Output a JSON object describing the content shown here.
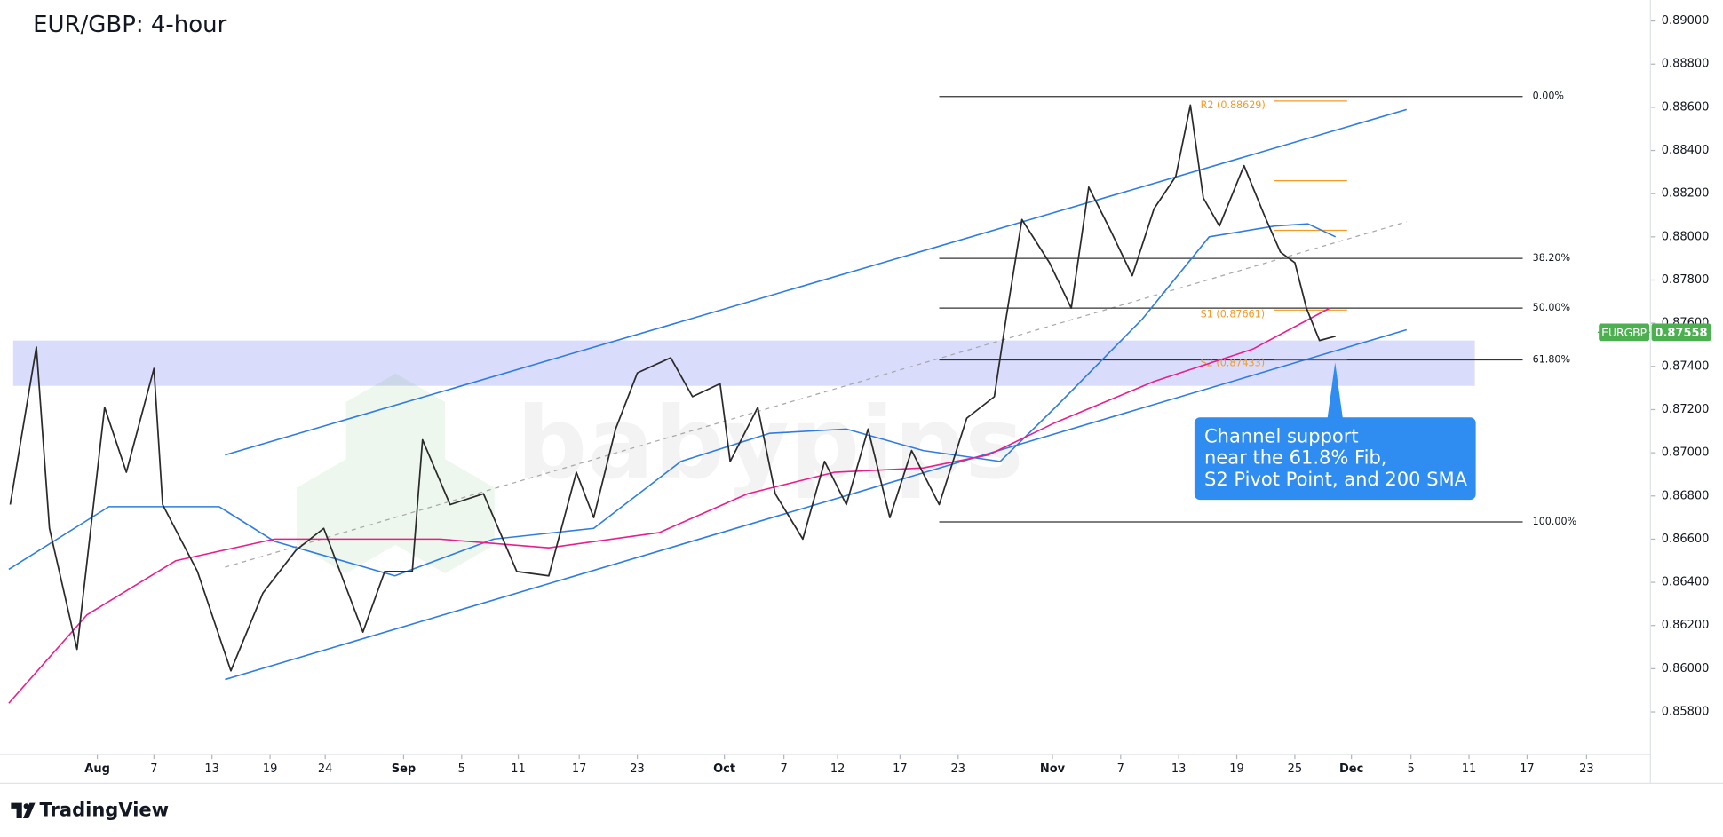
{
  "chart_data": {
    "type": "line",
    "title": "EUR/GBP: 4-hour",
    "watermark": "babypips",
    "footer_brand": "TradingView",
    "xlim": [
      -6.1,
      107.0
    ],
    "ylim": [
      0.85602,
      0.89097
    ],
    "grid": false,
    "xticks": [
      {
        "value": 0,
        "label": "Aug"
      },
      {
        "value": 3.9,
        "label": "7"
      },
      {
        "value": 7.9,
        "label": "13"
      },
      {
        "value": 11.9,
        "label": "19"
      },
      {
        "value": 15.7,
        "label": "24"
      },
      {
        "value": 21.1,
        "label": "Sep"
      },
      {
        "value": 25.1,
        "label": "5"
      },
      {
        "value": 29.0,
        "label": "11"
      },
      {
        "value": 33.2,
        "label": "17"
      },
      {
        "value": 37.2,
        "label": "23"
      },
      {
        "value": 43.2,
        "label": "Oct"
      },
      {
        "value": 47.3,
        "label": "7"
      },
      {
        "value": 51.0,
        "label": "12"
      },
      {
        "value": 55.3,
        "label": "17"
      },
      {
        "value": 59.3,
        "label": "23"
      },
      {
        "value": 65.8,
        "label": "Nov"
      },
      {
        "value": 70.5,
        "label": "7"
      },
      {
        "value": 74.5,
        "label": "13"
      },
      {
        "value": 78.5,
        "label": "19"
      },
      {
        "value": 82.5,
        "label": "25"
      },
      {
        "value": 86.4,
        "label": "Dec"
      },
      {
        "value": 90.5,
        "label": "5"
      },
      {
        "value": 94.5,
        "label": "11"
      },
      {
        "value": 98.5,
        "label": "17"
      },
      {
        "value": 102.6,
        "label": "23"
      }
    ],
    "yticks": [
      {
        "value": 0.858,
        "label": "0.85800"
      },
      {
        "value": 0.86,
        "label": "0.86000"
      },
      {
        "value": 0.862,
        "label": "0.86200"
      },
      {
        "value": 0.864,
        "label": "0.86400"
      },
      {
        "value": 0.866,
        "label": "0.86600"
      },
      {
        "value": 0.868,
        "label": "0.86800"
      },
      {
        "value": 0.87,
        "label": "0.87000"
      },
      {
        "value": 0.872,
        "label": "0.87200"
      },
      {
        "value": 0.874,
        "label": "0.87400"
      },
      {
        "value": 0.876,
        "label": "0.87600"
      },
      {
        "value": 0.878,
        "label": "0.87800"
      },
      {
        "value": 0.88,
        "label": "0.88000"
      },
      {
        "value": 0.882,
        "label": "0.88200"
      },
      {
        "value": 0.884,
        "label": "0.88400"
      },
      {
        "value": 0.886,
        "label": "0.88600"
      },
      {
        "value": 0.888,
        "label": "0.88800"
      },
      {
        "value": 0.89,
        "label": "0.89000"
      }
    ],
    "series": [
      {
        "color": "#2b2b2b",
        "x": [
          -6.0,
          -4.2,
          -3.3,
          -1.4,
          0.5,
          2.0,
          3.9,
          4.5,
          6.9,
          9.2,
          11.4,
          13.7,
          15.6,
          18.3,
          19.8,
          21.7,
          22.4,
          24.3,
          26.6,
          28.9,
          31.1,
          33.0,
          34.2,
          35.7,
          37.2,
          39.5,
          41.0,
          42.9,
          43.6,
          45.5,
          46.7,
          48.6,
          50.1,
          51.6,
          53.1,
          54.6,
          56.1,
          58.0,
          59.9,
          61.8,
          62.6,
          63.7,
          65.6,
          67.1,
          68.3,
          69.8,
          71.3,
          72.8,
          74.3,
          75.3,
          76.2,
          77.3,
          79.0,
          80.4,
          81.5,
          82.5,
          83.3,
          84.2,
          85.3
        ],
        "values": [
          0.8676,
          0.8749,
          0.8665,
          0.8609,
          0.8721,
          0.8691,
          0.8739,
          0.8676,
          0.8645,
          0.8599,
          0.8635,
          0.8655,
          0.8665,
          0.8617,
          0.8645,
          0.8645,
          0.8706,
          0.8676,
          0.8681,
          0.8645,
          0.8643,
          0.8691,
          0.867,
          0.8711,
          0.8737,
          0.8744,
          0.8726,
          0.8732,
          0.8696,
          0.8721,
          0.8681,
          0.866,
          0.8696,
          0.8676,
          0.8711,
          0.867,
          0.8701,
          0.8676,
          0.8716,
          0.8726,
          0.8762,
          0.8808,
          0.8788,
          0.8767,
          0.8823,
          0.8803,
          0.8782,
          0.8813,
          0.8828,
          0.8861,
          0.8818,
          0.8805,
          0.8833,
          0.881,
          0.8793,
          0.8788,
          0.8767,
          0.8752,
          0.8754
        ]
      },
      {
        "color": "#2f7de1",
        "x": [
          -6.1,
          0.8,
          8.4,
          12.2,
          20.5,
          27.3,
          34.2,
          40.2,
          46.3,
          51.6,
          56.9,
          62.2,
          66.0,
          72.0,
          76.6,
          81.1,
          83.4,
          85.3
        ],
        "values": [
          0.8646,
          0.8675,
          0.8675,
          0.8659,
          0.8643,
          0.866,
          0.8665,
          0.8696,
          0.8709,
          0.8711,
          0.8701,
          0.8696,
          0.8721,
          0.8762,
          0.88,
          0.8805,
          0.8806,
          0.88
        ]
      },
      {
        "color": "#e91e8c",
        "x": [
          -6.1,
          -0.7,
          5.4,
          12.2,
          23.6,
          31.1,
          38.7,
          44.8,
          50.8,
          56.9,
          61.4,
          66.0,
          72.8,
          79.6,
          84.9
        ],
        "values": [
          0.8584,
          0.8625,
          0.865,
          0.866,
          0.866,
          0.8656,
          0.8663,
          0.8681,
          0.8691,
          0.8693,
          0.8699,
          0.8714,
          0.8733,
          0.8748,
          0.8767
        ]
      }
    ],
    "channel_lines": [
      {
        "color": "#2f7de1",
        "dashed": false,
        "x": [
          8.8,
          90.2
        ],
        "values": [
          0.8699,
          0.8859
        ]
      },
      {
        "color": "#2f7de1",
        "dashed": false,
        "x": [
          8.8,
          90.2
        ],
        "values": [
          0.8595,
          0.8757
        ]
      },
      {
        "color": "#a8a8a8",
        "dashed": true,
        "x": [
          8.8,
          90.2
        ],
        "values": [
          0.8647,
          0.8807
        ]
      }
    ],
    "fib_levels": {
      "color": "#333333",
      "x": [
        58.0,
        98.2
      ],
      "levels": [
        {
          "label": "0.00%",
          "value": 0.8865
        },
        {
          "label": "38.20%",
          "value": 0.879
        },
        {
          "label": "50.00%",
          "value": 0.8767
        },
        {
          "label": "61.80%",
          "value": 0.8743
        },
        {
          "label": "100.00%",
          "value": 0.8668
        }
      ]
    },
    "pivots": {
      "color": "#f59a23",
      "x": [
        81.1,
        86.1
      ],
      "label_x": 76.0,
      "levels": [
        {
          "label": "R2 (0.88629)",
          "value": 0.88629
        },
        {
          "value": 0.8826
        },
        {
          "value": 0.8803
        },
        {
          "label": "S1 (0.87661)",
          "value": 0.87661
        },
        {
          "label": "S2 (0.87433)",
          "value": 0.87433
        }
      ]
    },
    "zone": {
      "color": "#7b80f2",
      "x": [
        -5.8,
        94.9
      ],
      "values": [
        0.8731,
        0.8752
      ]
    },
    "annotation": {
      "color": "#2f8cf0",
      "lines": [
        "Channel support",
        "near the 61.8% Fib,",
        "S2 Pivot Point, and 200 SMA"
      ]
    },
    "last_price": {
      "symbol": "EURGBP",
      "value": 0.87558,
      "color": "#4caf50"
    }
  }
}
